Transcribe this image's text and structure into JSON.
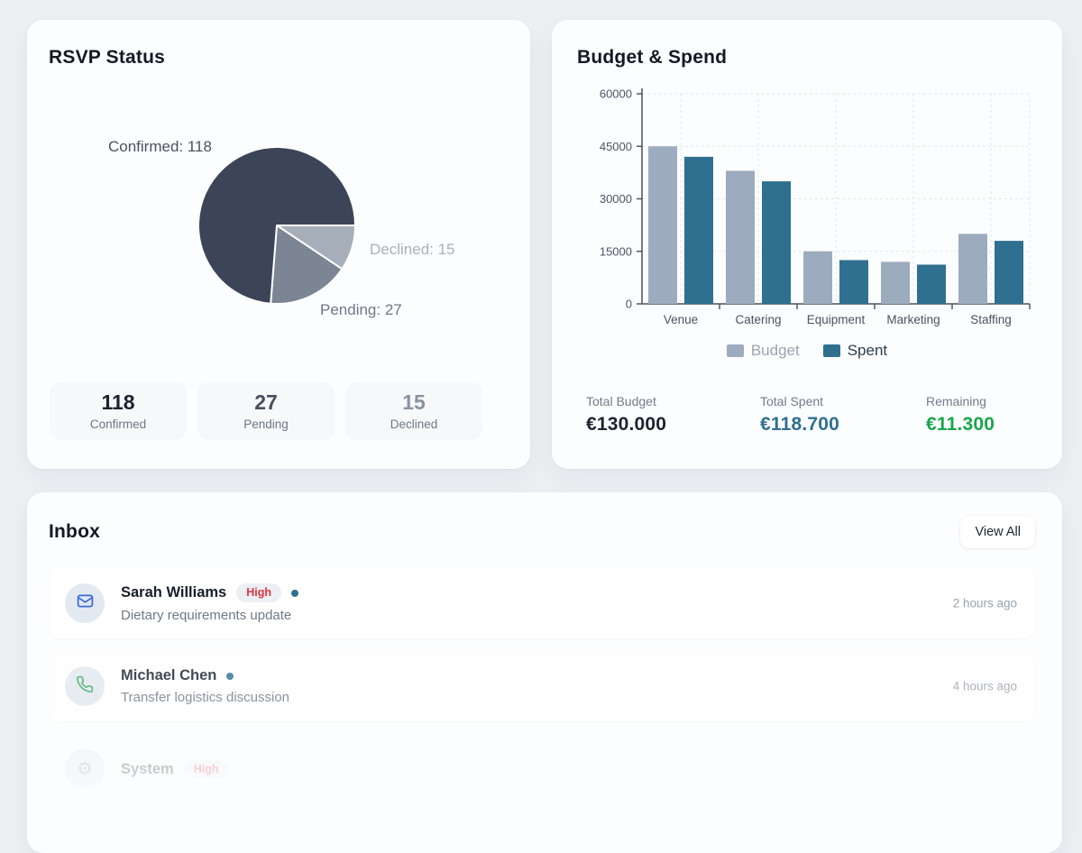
{
  "rsvp_card": {
    "title": "RSVP Status",
    "pie_labels": {
      "confirmed": "Confirmed: 118",
      "declined": "Declined: 15",
      "pending": "Pending: 27"
    },
    "stats": [
      {
        "value": "118",
        "label": "Confirmed"
      },
      {
        "value": "27",
        "label": "Pending"
      },
      {
        "value": "15",
        "label": "Declined"
      }
    ]
  },
  "budget_card": {
    "title": "Budget & Spend",
    "legend": [
      {
        "label": "Budget",
        "swatch_color": "#9dabbe",
        "text_color": "#9aa4b1"
      },
      {
        "label": "Spent",
        "swatch_color": "#2f7090",
        "text_color": "#2c3d4f"
      }
    ],
    "totals": [
      {
        "label": "Total Budget",
        "value": "€130.000",
        "color": "#1b2430"
      },
      {
        "label": "Total Spent",
        "value": "€118.700",
        "color": "#2f7090"
      },
      {
        "label": "Remaining",
        "value": "€11.300",
        "color": "#18a64d"
      }
    ]
  },
  "inbox_card": {
    "title": "Inbox",
    "view_all_label": "View All",
    "messages": [
      {
        "sender": "Sarah Williams",
        "priority": "High",
        "subject": "Dietary requirements update",
        "time": "2 hours ago",
        "icon": "mail-icon",
        "unread": true
      },
      {
        "sender": "Michael Chen",
        "priority": "",
        "subject": "Transfer logistics discussion",
        "time": "4 hours ago",
        "icon": "phone-icon",
        "unread": true
      },
      {
        "sender": "System",
        "priority": "High",
        "subject": "",
        "time": "",
        "icon": "system-icon",
        "unread": false
      }
    ]
  },
  "chart_data": [
    {
      "type": "pie",
      "title": "RSVP Status",
      "slices": [
        {
          "label": "Confirmed",
          "value": 118,
          "color": "#3b4557"
        },
        {
          "label": "Pending",
          "value": 27,
          "color": "#7c8593"
        },
        {
          "label": "Declined",
          "value": 15,
          "color": "#a6aeb9"
        }
      ],
      "draw_order": [
        "Declined",
        "Pending",
        "Confirmed"
      ],
      "start_angle_deg": 0,
      "direction": "clockwise",
      "annotations": [
        "Confirmed: 118",
        "Declined: 15",
        "Pending: 27"
      ]
    },
    {
      "type": "bar",
      "title": "Budget & Spend",
      "categories": [
        "Venue",
        "Catering",
        "Equipment",
        "Marketing",
        "Staffing"
      ],
      "series": [
        {
          "name": "Budget",
          "color": "#9dabbe",
          "values": [
            45000,
            38000,
            15000,
            12000,
            20000
          ]
        },
        {
          "name": "Spent",
          "color": "#2f7090",
          "values": [
            42000,
            35000,
            12500,
            11200,
            18000
          ]
        }
      ],
      "ylim": [
        0,
        60000
      ],
      "yticks": [
        0,
        15000,
        30000,
        45000,
        60000
      ],
      "grid": "dashed",
      "legend_position": "bottom"
    }
  ]
}
